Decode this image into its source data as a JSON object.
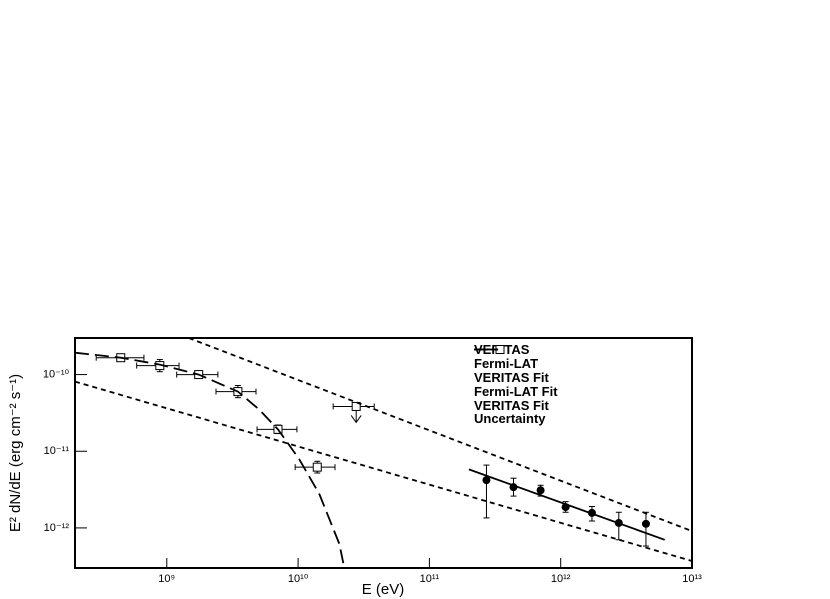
{
  "chart_data": {
    "type": "scatter",
    "xlabel": "E (eV)",
    "ylabel": "E² dN/dE (erg cm⁻² s⁻¹)",
    "log_x": true,
    "log_y": true,
    "xlim": [
      200000000.0,
      10000000000000.0
    ],
    "ylim": [
      3e-13,
      3e-10
    ],
    "xticks": [
      {
        "value": 1000000000.0,
        "label": "10⁹"
      },
      {
        "value": 10000000000.0,
        "label": "10¹⁰"
      },
      {
        "value": 100000000000.0,
        "label": "10¹¹"
      },
      {
        "value": 1000000000000.0,
        "label": "10¹²"
      },
      {
        "value": 10000000000000.0,
        "label": "10¹³"
      }
    ],
    "yticks": [
      {
        "value": 1e-12,
        "label": "10⁻¹²"
      },
      {
        "value": 1e-11,
        "label": "10⁻¹¹"
      },
      {
        "value": 1e-10,
        "label": "10⁻¹⁰"
      }
    ],
    "legend": "upper right",
    "series": [
      {
        "name": "VERITAS",
        "marker": "circle",
        "color": "#000000",
        "x": [
          272000000000.0,
          437000000000.0,
          703000000000.0,
          1090000000000.0,
          1730000000000.0,
          2770000000000.0,
          4460000000000.0
        ],
        "values": [
          4.2e-12,
          3.4e-12,
          3.1e-12,
          1.87e-12,
          1.57e-12,
          1.16e-12,
          1.13e-12
        ],
        "y_low": [
          1.35e-12,
          2.6e-12,
          2.6e-12,
          1.6e-12,
          1.23e-12,
          7e-13,
          5.8e-13
        ],
        "y_high": [
          6.6e-12,
          4.45e-12,
          3.6e-12,
          2.2e-12,
          1.9e-12,
          1.6e-12,
          1.6e-12
        ]
      },
      {
        "name": "Fermi-LAT",
        "marker": "square",
        "color": "#000000",
        "x": [
          446000000.0,
          885000000.0,
          1750000000.0,
          3480000000.0,
          7030000000.0,
          14000000000.0,
          27700000000.0
        ],
        "values": [
          1.66e-10,
          1.31e-10,
          1e-10,
          6e-11,
          1.93e-11,
          6.2e-12,
          3.84e-11
        ],
        "x_low": [
          290000000.0,
          590000000.0,
          1190000000.0,
          2370000000.0,
          4870000000.0,
          9500000000.0,
          18500000000.0
        ],
        "x_high": [
          670000000.0,
          1240000000.0,
          2450000000.0,
          4780000000.0,
          9800000000.0,
          19100000000.0,
          38000000000.0
        ],
        "y_low": [
          1.58e-10,
          1.09e-10,
          9.1e-11,
          5e-11,
          1.7e-11,
          5.2e-12,
          3.84e-11
        ],
        "y_high": [
          1.74e-10,
          1.57e-10,
          1.09e-10,
          7.2e-11,
          2.2e-11,
          7.4e-12,
          3.84e-11
        ],
        "upper_limit": [
          false,
          false,
          false,
          false,
          false,
          false,
          true
        ]
      },
      {
        "name": "VERITAS Fit",
        "dash": "solid",
        "color": "#000000",
        "x": [
          200000000000.0,
          6200000000000.0
        ],
        "values": [
          5.8e-12,
          7e-13
        ]
      },
      {
        "name": "Fermi-LAT Fit",
        "dash": "long-dash",
        "color": "#000000",
        "x": [
          200000000.0,
          446000000.0,
          885000000.0,
          1750000000.0,
          3480000000.0,
          5040000000.0,
          7030000000.0,
          10200000000.0,
          14500000000.0,
          20600000000.0,
          22400000000.0
        ],
        "values": [
          1.93e-10,
          1.66e-10,
          1.35e-10,
          1e-10,
          6e-11,
          3.51e-11,
          1.93e-11,
          7.87e-12,
          2.77e-12,
          6.2e-13,
          3.1e-13
        ]
      },
      {
        "name": "VERITAS Fit Uncertainty",
        "dash": "dash",
        "color": "#000000",
        "segments": [
          {
            "x": [
              1470000000.0,
              10000000000000.0
            ],
            "values": [
              3e-10,
              9.1e-13
            ]
          },
          {
            "x": [
              200000000.0,
              10000000000000.0
            ],
            "values": [
              8.1e-11,
              3.7e-13
            ]
          }
        ]
      }
    ]
  }
}
